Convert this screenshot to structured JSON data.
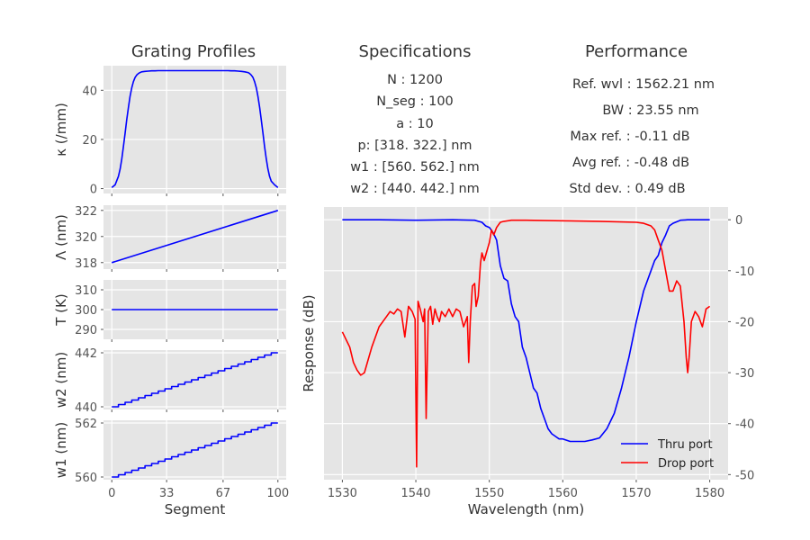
{
  "headers": {
    "profiles": "Grating Profiles",
    "specs": "Specifications",
    "performance": "Performance"
  },
  "specifications": [
    "N : 1200",
    "N_seg : 100",
    "a : 10",
    "p: [318. 322.] nm",
    "w1 : [560. 562.] nm",
    "w2 : [440. 442.] nm"
  ],
  "performance": [
    "Ref. wvl : 1562.21 nm",
    "BW : 23.55 nm",
    "Max ref. : -0.11 dB",
    "Avg ref. : -0.48 dB",
    "Std dev. : 0.49 dB"
  ],
  "colors": {
    "thru": "#0000ff",
    "drop": "#ff0000",
    "profile": "#0000ff",
    "panel": "#e5e5e5"
  },
  "chart_data": [
    {
      "type": "line",
      "id": "kappa",
      "ylabel": "κ (/mm)",
      "xlim": [
        -5,
        105
      ],
      "ylim": [
        -2,
        50
      ],
      "yticks": [
        0,
        20,
        40
      ],
      "xticks": [
        0,
        33,
        67,
        100
      ],
      "xtick_labels": false,
      "series": [
        {
          "x": [
            0,
            2,
            4,
            5,
            6,
            7,
            8,
            9,
            10,
            11,
            12,
            13,
            14,
            15,
            16,
            17,
            18,
            20,
            22,
            24,
            26,
            28,
            30,
            50,
            70,
            72,
            74,
            76,
            78,
            80,
            82,
            83,
            84,
            85,
            86,
            87,
            88,
            89,
            90,
            91,
            92,
            93,
            94,
            95,
            96,
            98,
            100
          ],
          "y": [
            0.4,
            1.5,
            5,
            8,
            12,
            17,
            22.5,
            28,
            33,
            37.5,
            41,
            43.5,
            45.2,
            46.2,
            46.8,
            47.2,
            47.5,
            47.7,
            47.8,
            47.9,
            47.9,
            48,
            48,
            48,
            48,
            47.9,
            47.9,
            47.8,
            47.7,
            47.5,
            47.2,
            46.8,
            46.2,
            45.2,
            43.5,
            41,
            37.5,
            33,
            28,
            22.5,
            17,
            12,
            8,
            5,
            3,
            1.5,
            0.4
          ]
        }
      ]
    },
    {
      "type": "line",
      "id": "period",
      "ylabel": "Λ (nm)",
      "xlim": [
        -5,
        105
      ],
      "ylim": [
        317.5,
        322.4
      ],
      "yticks": [
        318,
        320,
        322
      ],
      "xticks": [
        0,
        33,
        67,
        100
      ],
      "xtick_labels": false,
      "series": [
        {
          "x": [
            0,
            100
          ],
          "y": [
            318,
            322
          ]
        }
      ]
    },
    {
      "type": "line",
      "id": "temperature",
      "ylabel": "T (K)",
      "xlim": [
        -5,
        105
      ],
      "ylim": [
        285,
        315
      ],
      "yticks": [
        290,
        300,
        310
      ],
      "xticks": [
        0,
        33,
        67,
        100
      ],
      "xtick_labels": false,
      "series": [
        {
          "x": [
            0,
            100
          ],
          "y": [
            300,
            300
          ]
        }
      ]
    },
    {
      "type": "line",
      "id": "w2",
      "ylabel": "w2 (nm)",
      "xlim": [
        -5,
        105
      ],
      "ylim": [
        439.9,
        442.1
      ],
      "yticks": [
        440,
        442
      ],
      "xticks": [
        0,
        33,
        67,
        100
      ],
      "xtick_labels": false,
      "staircase": true,
      "series": [
        {
          "x": [
            0,
            100
          ],
          "y": [
            440,
            442
          ]
        }
      ]
    },
    {
      "type": "line",
      "id": "w1",
      "ylabel": "w1 (nm)",
      "xlabel": "Segment",
      "xlim": [
        -5,
        105
      ],
      "ylim": [
        559.9,
        562.1
      ],
      "yticks": [
        560,
        562
      ],
      "xticks": [
        0,
        33,
        67,
        100
      ],
      "xtick_labels": true,
      "staircase": true,
      "series": [
        {
          "x": [
            0,
            100
          ],
          "y": [
            560,
            562
          ]
        }
      ]
    },
    {
      "type": "line",
      "id": "response",
      "xlabel": "Wavelength (nm)",
      "ylabel": "Response (dB)",
      "xlim": [
        1527.5,
        1582.5
      ],
      "ylim": [
        -51,
        2.5
      ],
      "xticks": [
        1530,
        1540,
        1550,
        1560,
        1570,
        1580
      ],
      "yticks": [
        0,
        -10,
        -20,
        -30,
        -40,
        -50
      ],
      "legend": "lower-right",
      "series": [
        {
          "name": "Thru port",
          "color": "#0000ff",
          "x": [
            1530,
            1535,
            1540,
            1545,
            1548,
            1549,
            1549.5,
            1550,
            1550.5,
            1551,
            1551.5,
            1552,
            1552.5,
            1553,
            1553.5,
            1554,
            1554.5,
            1555,
            1555.5,
            1556,
            1556.5,
            1557,
            1557.5,
            1558,
            1558.5,
            1559,
            1559.5,
            1560,
            1561,
            1562,
            1563,
            1564,
            1565,
            1566,
            1567,
            1568,
            1569,
            1570,
            1571,
            1572,
            1572.5,
            1573,
            1573.5,
            1574,
            1574.5,
            1575,
            1576,
            1577,
            1578,
            1580
          ],
          "y": [
            0,
            0,
            -0.1,
            0,
            -0.1,
            -0.5,
            -1.2,
            -1.5,
            -2.5,
            -4,
            -9,
            -11.5,
            -12,
            -16.5,
            -19,
            -20,
            -25,
            -27,
            -30,
            -33,
            -34,
            -37,
            -39,
            -41,
            -42,
            -42.5,
            -43,
            -43,
            -43.5,
            -43.5,
            -43.5,
            -43.2,
            -42.8,
            -41,
            -38,
            -33,
            -27,
            -20,
            -14,
            -10,
            -8,
            -7,
            -4.5,
            -3,
            -1.2,
            -0.7,
            -0.1,
            0,
            0,
            0
          ]
        },
        {
          "name": "Drop port",
          "color": "#ff0000",
          "x": [
            1530,
            1531,
            1531.5,
            1532,
            1532.5,
            1533,
            1534,
            1535,
            1536,
            1536.5,
            1537,
            1537.5,
            1538,
            1538.5,
            1539,
            1539.5,
            1539.9,
            1540.1,
            1540.3,
            1540.6,
            1541,
            1541.2,
            1541.4,
            1541.7,
            1542,
            1542.3,
            1542.6,
            1542.9,
            1543.2,
            1543.5,
            1544,
            1544.5,
            1545,
            1545.5,
            1546,
            1546.5,
            1547,
            1547.2,
            1547.4,
            1547.7,
            1548,
            1548.2,
            1548.5,
            1548.8,
            1549,
            1549.3,
            1549.6,
            1550,
            1550.3,
            1550.6,
            1551,
            1551.5,
            1552,
            1553,
            1555,
            1560,
            1565,
            1570,
            1571,
            1572,
            1572.5,
            1573,
            1573.5,
            1574,
            1574.5,
            1575,
            1575.5,
            1576,
            1576.5,
            1576.8,
            1577,
            1577.2,
            1577.5,
            1578,
            1578.5,
            1579,
            1579.5,
            1580
          ],
          "y": [
            -22,
            -25,
            -28,
            -29.5,
            -30.5,
            -30,
            -25,
            -21,
            -19,
            -18,
            -18.5,
            -17.5,
            -18,
            -23,
            -17,
            -18,
            -19.5,
            -48.5,
            -16,
            -17.5,
            -20,
            -17.5,
            -39,
            -18,
            -17,
            -20.5,
            -17.5,
            -19,
            -20,
            -18,
            -19,
            -17.5,
            -19,
            -17.5,
            -18,
            -21,
            -19,
            -28,
            -20,
            -13,
            -12.5,
            -17,
            -15,
            -8.5,
            -6.5,
            -8,
            -6.5,
            -4.5,
            -2,
            -3,
            -1.5,
            -0.5,
            -0.3,
            -0.1,
            -0.1,
            -0.2,
            -0.3,
            -0.5,
            -0.7,
            -1.2,
            -2,
            -4,
            -6,
            -10,
            -14,
            -14,
            -12,
            -13,
            -20,
            -27,
            -30,
            -27,
            -20,
            -18,
            -19,
            -21,
            -17.5,
            -17
          ]
        }
      ]
    }
  ]
}
